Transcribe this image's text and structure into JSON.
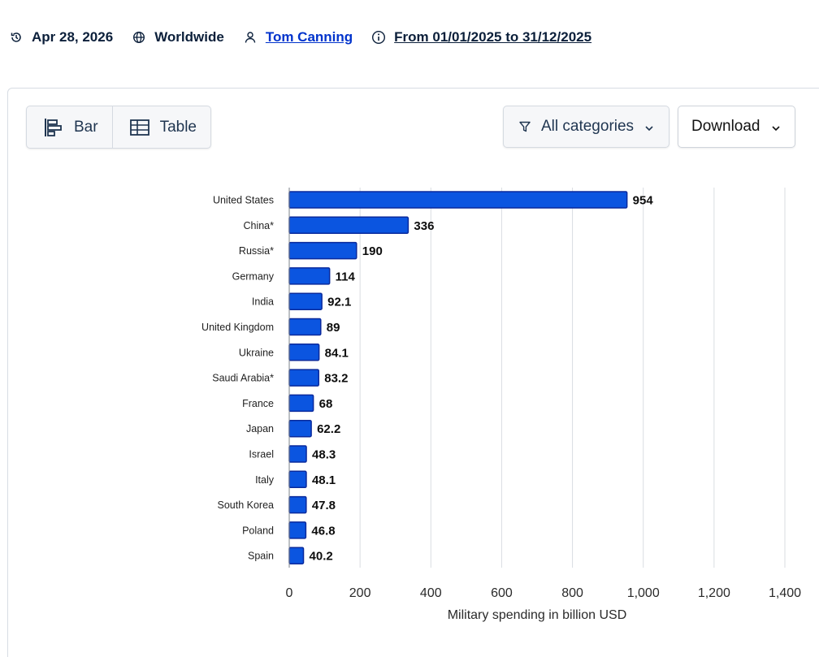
{
  "meta": {
    "date": "Apr 28, 2026",
    "region": "Worldwide",
    "author": "Tom Canning",
    "period": "From 01/01/2025 to 31/12/2025",
    "icons": {
      "date": "history-icon",
      "region": "globe-icon",
      "author": "user-icon",
      "period": "info-icon"
    }
  },
  "toolbar": {
    "bar_label": "Bar",
    "table_label": "Table",
    "filter_label": "All categories",
    "download_label": "Download"
  },
  "chart_data": {
    "type": "bar",
    "orientation": "horizontal",
    "categories": [
      "United States",
      "China*",
      "Russia*",
      "Germany",
      "India",
      "United Kingdom",
      "Ukraine",
      "Saudi Arabia*",
      "France",
      "Japan",
      "Israel",
      "Italy",
      "South Korea",
      "Poland",
      "Spain"
    ],
    "values": [
      954,
      336,
      190,
      114,
      92.1,
      89,
      84.1,
      83.2,
      68,
      62.2,
      48.3,
      48.1,
      47.8,
      46.8,
      40.2
    ],
    "value_labels": [
      "954",
      "336",
      "190",
      "114",
      "92.1",
      "89",
      "84.1",
      "83.2",
      "68",
      "62.2",
      "48.3",
      "48.1",
      "47.8",
      "46.8",
      "40.2"
    ],
    "xlabel": "Military spending in billion USD",
    "xlim": [
      0,
      1400
    ],
    "xticks": [
      0,
      200,
      400,
      600,
      800,
      1000,
      1200,
      1400
    ],
    "xtick_labels": [
      "0",
      "200",
      "400",
      "600",
      "800",
      "1,000",
      "1,200",
      "1,400"
    ],
    "grid": true,
    "bar_color": "#0b55e0",
    "bar_border_color": "#0a2a9c"
  }
}
